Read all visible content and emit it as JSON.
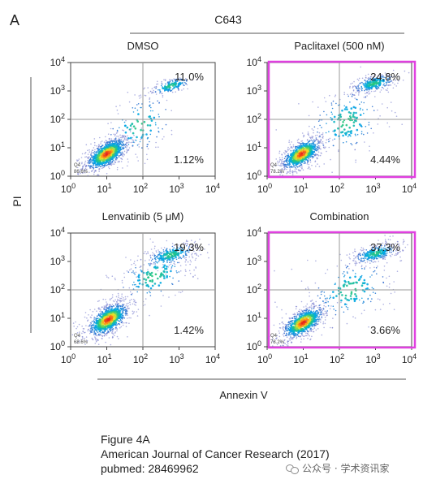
{
  "figure": {
    "panel_letter": "A",
    "cell_line": "C643",
    "shared_ylabel": "PI",
    "shared_xlabel": "Annexin V",
    "highlight_color": "#e040e0"
  },
  "chart_data": [
    {
      "type": "scatter",
      "title": "DMSO",
      "x_scale": "log",
      "y_scale": "log",
      "xlim": [
        1,
        10000
      ],
      "ylim": [
        1,
        10000
      ],
      "gate_x": 100,
      "gate_y": 100,
      "x_ticks": [
        "10",
        "10",
        "10",
        "10",
        "10"
      ],
      "x_tick_exponents": [
        "0",
        "1",
        "2",
        "3",
        "4"
      ],
      "y_ticks": [
        "10",
        "10",
        "10",
        "10",
        "10"
      ],
      "y_tick_exponents": [
        "0",
        "1",
        "2",
        "3",
        "4"
      ],
      "quadrant_labels": {
        "upper_right": "11.0%",
        "lower_right": "1.12%",
        "q4_name": "Q4",
        "lower_left": "86.6%"
      },
      "highlighted": false,
      "clusters": [
        {
          "cx": 10,
          "cy": 6,
          "sx": 0.32,
          "sy": 0.25,
          "n": 900,
          "rot": 0.6
        },
        {
          "cx": 600,
          "cy": 1500,
          "sx": 0.32,
          "sy": 0.14,
          "n": 160,
          "rot": 0.35
        },
        {
          "cx": 80,
          "cy": 60,
          "sx": 0.55,
          "sy": 0.6,
          "n": 140,
          "rot": 0.4
        }
      ]
    },
    {
      "type": "scatter",
      "title": "Paclitaxel (500 nM)",
      "x_scale": "log",
      "y_scale": "log",
      "xlim": [
        1,
        10000
      ],
      "ylim": [
        1,
        10000
      ],
      "gate_x": 100,
      "gate_y": 100,
      "x_ticks": [
        "10",
        "10",
        "10",
        "10",
        "10"
      ],
      "x_tick_exponents": [
        "0",
        "1",
        "2",
        "3",
        "4"
      ],
      "y_ticks": [
        "10",
        "10",
        "10",
        "10",
        "10"
      ],
      "y_tick_exponents": [
        "0",
        "1",
        "2",
        "3",
        "4"
      ],
      "quadrant_labels": {
        "upper_right": "24.8%",
        "lower_right": "4.44%",
        "q4_name": "Q4",
        "lower_left": "78.2%"
      },
      "highlighted": true,
      "clusters": [
        {
          "cx": 9,
          "cy": 6,
          "sx": 0.3,
          "sy": 0.25,
          "n": 750,
          "rot": 0.6
        },
        {
          "cx": 900,
          "cy": 1800,
          "sx": 0.35,
          "sy": 0.16,
          "n": 260,
          "rot": 0.3
        },
        {
          "cx": 150,
          "cy": 80,
          "sx": 0.6,
          "sy": 0.65,
          "n": 200,
          "rot": 0.3
        }
      ]
    },
    {
      "type": "scatter",
      "title": "Lenvatinib (5 μM)",
      "x_scale": "log",
      "y_scale": "log",
      "xlim": [
        1,
        10000
      ],
      "ylim": [
        1,
        10000
      ],
      "gate_x": 100,
      "gate_y": 100,
      "x_ticks": [
        "10",
        "10",
        "10",
        "10",
        "10"
      ],
      "x_tick_exponents": [
        "0",
        "1",
        "2",
        "3",
        "4"
      ],
      "y_ticks": [
        "10",
        "10",
        "10",
        "10",
        "10"
      ],
      "y_tick_exponents": [
        "0",
        "1",
        "2",
        "3",
        "4"
      ],
      "quadrant_labels": {
        "upper_right": "19.3%",
        "lower_right": "1.42%",
        "q4_name": "Q4",
        "lower_left": "68.6%"
      },
      "highlighted": false,
      "clusters": [
        {
          "cx": 11,
          "cy": 9,
          "sx": 0.32,
          "sy": 0.27,
          "n": 850,
          "rot": 0.6
        },
        {
          "cx": 600,
          "cy": 1700,
          "sx": 0.4,
          "sy": 0.2,
          "n": 260,
          "rot": 0.3
        },
        {
          "cx": 200,
          "cy": 300,
          "sx": 0.6,
          "sy": 0.5,
          "n": 180,
          "rot": 0.4
        }
      ]
    },
    {
      "type": "scatter",
      "title": "Combination",
      "x_scale": "log",
      "y_scale": "log",
      "xlim": [
        1,
        10000
      ],
      "ylim": [
        1,
        10000
      ],
      "gate_x": 100,
      "gate_y": 100,
      "x_ticks": [
        "10",
        "10",
        "10",
        "10",
        "10"
      ],
      "x_tick_exponents": [
        "0",
        "1",
        "2",
        "3",
        "4"
      ],
      "y_ticks": [
        "10",
        "10",
        "10",
        "10",
        "10"
      ],
      "y_tick_exponents": [
        "0",
        "1",
        "2",
        "3",
        "4"
      ],
      "quadrant_labels": {
        "upper_right": "37.3%",
        "lower_right": "3.66%",
        "q4_name": "Q4",
        "lower_left": "78.2%"
      },
      "highlighted": true,
      "clusters": [
        {
          "cx": 10,
          "cy": 7,
          "sx": 0.32,
          "sy": 0.25,
          "n": 720,
          "rot": 0.6
        },
        {
          "cx": 1000,
          "cy": 1900,
          "sx": 0.36,
          "sy": 0.17,
          "n": 300,
          "rot": 0.3
        },
        {
          "cx": 200,
          "cy": 100,
          "sx": 0.65,
          "sy": 0.6,
          "n": 200,
          "rot": 0.3
        }
      ]
    }
  ],
  "caption": {
    "line1": "Figure 4A",
    "line2": "American Journal of Cancer Research (2017)",
    "line3": "pubmed: 28469962"
  },
  "watermark": {
    "icon": "wechat-icon",
    "text": "公众号 · 学术资讯家"
  }
}
